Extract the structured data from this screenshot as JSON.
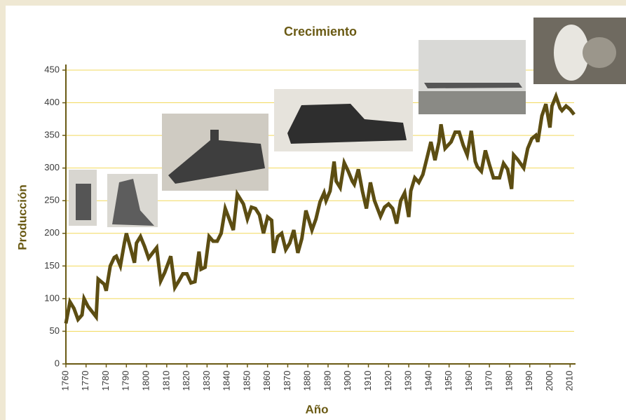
{
  "chart_data": {
    "type": "line",
    "title": "Crecimiento",
    "x_label": "Año",
    "y_label": "Producción",
    "xlim": [
      1760,
      2012
    ],
    "ylim": [
      0,
      450
    ],
    "xticks": [
      1760,
      1770,
      1780,
      1790,
      1800,
      1810,
      1820,
      1830,
      1840,
      1850,
      1860,
      1870,
      1880,
      1890,
      1900,
      1910,
      1920,
      1930,
      1940,
      1950,
      1960,
      1970,
      1980,
      1990,
      2000,
      2010
    ],
    "yticks": [
      0,
      50,
      100,
      150,
      200,
      250,
      300,
      350,
      400,
      450
    ],
    "grid": true,
    "series": [
      {
        "name": "Producción",
        "color": "#5c4d12",
        "x": [
          1760,
          1762,
          1764,
          1766,
          1768,
          1769,
          1771,
          1773,
          1775,
          1776,
          1779,
          1780,
          1782,
          1784,
          1785,
          1787,
          1789,
          1790,
          1792,
          1794,
          1795,
          1797,
          1799,
          1801,
          1803,
          1805,
          1807,
          1809,
          1812,
          1814,
          1816,
          1818,
          1820,
          1822,
          1824,
          1826,
          1827,
          1829,
          1831,
          1833,
          1835,
          1837,
          1839,
          1841,
          1843,
          1845,
          1848,
          1850,
          1852,
          1854,
          1856,
          1858,
          1860,
          1862,
          1863,
          1865,
          1867,
          1869,
          1871,
          1873,
          1875,
          1877,
          1879,
          1882,
          1884,
          1886,
          1888,
          1889,
          1891,
          1893,
          1894,
          1896,
          1898,
          1900,
          1902,
          1903,
          1905,
          1907,
          1909,
          1911,
          1913,
          1916,
          1918,
          1920,
          1922,
          1924,
          1926,
          1928,
          1930,
          1931,
          1933,
          1935,
          1937,
          1939,
          1941,
          1943,
          1945,
          1946,
          1948,
          1951,
          1953,
          1955,
          1957,
          1959,
          1961,
          1963,
          1964,
          1966,
          1968,
          1970,
          1972,
          1974,
          1975,
          1977,
          1979,
          1981,
          1982,
          1984,
          1987,
          1989,
          1991,
          1993,
          1994,
          1996,
          1998,
          2000,
          2001,
          2003,
          2005,
          2006,
          2008,
          2010,
          2012
        ],
        "values": [
          62,
          95,
          85,
          68,
          75,
          100,
          88,
          80,
          72,
          130,
          122,
          112,
          150,
          163,
          165,
          150,
          185,
          200,
          178,
          155,
          185,
          195,
          180,
          162,
          170,
          178,
          127,
          140,
          165,
          117,
          127,
          138,
          138,
          124,
          126,
          172,
          145,
          148,
          195,
          188,
          188,
          200,
          238,
          222,
          205,
          260,
          245,
          222,
          240,
          238,
          228,
          200,
          225,
          220,
          170,
          195,
          200,
          175,
          185,
          205,
          170,
          192,
          235,
          205,
          222,
          248,
          262,
          250,
          265,
          310,
          280,
          270,
          308,
          295,
          280,
          275,
          298,
          265,
          238,
          278,
          250,
          226,
          240,
          245,
          238,
          215,
          250,
          262,
          225,
          265,
          285,
          278,
          290,
          315,
          340,
          312,
          340,
          367,
          330,
          340,
          355,
          355,
          335,
          320,
          357,
          310,
          302,
          295,
          327,
          305,
          285,
          285,
          285,
          307,
          298,
          268,
          320,
          313,
          300,
          330,
          345,
          350,
          340,
          380,
          398,
          362,
          395,
          410,
          392,
          388,
          395,
          390,
          382
        ]
      }
    ]
  }
}
